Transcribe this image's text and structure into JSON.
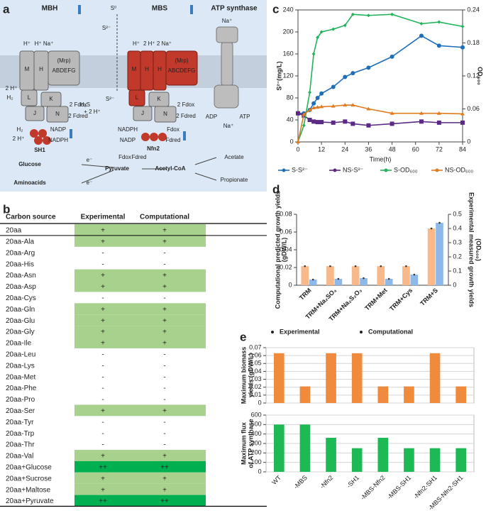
{
  "panel_labels": [
    "a",
    "b",
    "c",
    "d",
    "e"
  ],
  "diagram": {
    "labels": [
      "MBH",
      "MBS",
      "ATP synthase",
      "S⁰",
      "S²⁻",
      "H⁺",
      "H⁺ Na⁺",
      "(Mrp)",
      "ABDEFG",
      "M",
      "H",
      "L",
      "K",
      "J",
      "N",
      "2 H⁺",
      "H₂",
      "2 Fdox",
      "2 Fdred",
      "H⁺",
      "2 H⁺ 2 Na⁺",
      "(Mrp)",
      "ABCDEFG",
      "M",
      "H",
      "H",
      "L",
      "K",
      "J",
      "N",
      "S²⁻",
      "H₂S",
      "+ 2 H⁺",
      "2 Fdox",
      "2 Fdred",
      "Na⁺",
      "ADP",
      "ATP",
      "Na⁺",
      "H₂",
      "2 H⁺",
      "NADP",
      "NADPH",
      "SH1",
      "NADPH",
      "NADP",
      "Fdox",
      "Fdred",
      "Nfn2",
      "Glucose",
      "Aminoacids",
      "e⁻",
      "e⁻",
      "Pyruvate",
      "Fdox",
      "Fdred",
      "Acetyl-CoA",
      "Acetate",
      "Propionate"
    ]
  },
  "table": {
    "header": [
      "Carbon source",
      "Experimental",
      "Computational"
    ],
    "rows": [
      [
        "20aa",
        "+",
        "+"
      ],
      [
        "20aa-Ala",
        "+",
        "+"
      ],
      [
        "20aa-Arg",
        "-",
        "-"
      ],
      [
        "20aa-His",
        "-",
        "-"
      ],
      [
        "20aa-Asn",
        "+",
        "+"
      ],
      [
        "20aa-Asp",
        "+",
        "+"
      ],
      [
        "20aa-Cys",
        "-",
        "-"
      ],
      [
        "20aa-Gln",
        "+",
        "+"
      ],
      [
        "20aa-Glu",
        "+",
        "+"
      ],
      [
        "20aa-Gly",
        "+",
        "+"
      ],
      [
        "20aa-Ile",
        "+",
        "+"
      ],
      [
        "20aa-Leu",
        "-",
        "-"
      ],
      [
        "20aa-Lys",
        "-",
        "-"
      ],
      [
        "20aa-Met",
        "-",
        "-"
      ],
      [
        "20aa-Phe",
        "-",
        "-"
      ],
      [
        "20aa-Pro",
        "-",
        "-"
      ],
      [
        "20aa-Ser",
        "+",
        "+"
      ],
      [
        "20aa-Tyr",
        "-",
        "-"
      ],
      [
        "20aa-Trp",
        "-",
        "-"
      ],
      [
        "20aa-Thr",
        "-",
        "-"
      ],
      [
        "20aa-Val",
        "+",
        "+"
      ],
      [
        "20aa+Glucose",
        "++",
        "++"
      ],
      [
        "20aa+Sucrose",
        "+",
        "+"
      ],
      [
        "20aa+Maltose",
        "+",
        "+"
      ],
      [
        "20aa+Pyruvate",
        "++",
        "++"
      ]
    ]
  },
  "chart_data": [
    {
      "type": "line",
      "x": [
        0,
        3,
        6,
        8,
        10,
        12,
        18,
        24,
        28,
        36,
        48,
        63,
        72,
        84
      ],
      "xlim": [
        0,
        84
      ],
      "xticks": [
        0,
        12,
        24,
        36,
        48,
        60,
        72,
        84
      ],
      "xlabel": "Time(h)",
      "ylabel": "S²⁻(mg/L)",
      "y2label": "OD₆₀₀",
      "ylim": [
        0,
        240
      ],
      "yticks": [
        0,
        40,
        80,
        120,
        160,
        200,
        240
      ],
      "y2lim": [
        0,
        0.24
      ],
      "y2ticks": [
        0,
        0.06,
        0.12,
        0.18,
        0.24
      ],
      "series": [
        {
          "name": "S-S²⁻",
          "color": "#1f6fb8",
          "marker": "circle",
          "values": [
            52,
            52,
            58,
            70,
            80,
            88,
            100,
            118,
            125,
            135,
            155,
            193,
            175,
            172
          ]
        },
        {
          "name": "NS-S²⁻",
          "color": "#5b2a86",
          "marker": "square",
          "values": [
            52,
            48,
            40,
            37,
            36,
            36,
            35,
            37,
            33,
            30,
            33,
            37,
            35,
            35
          ]
        },
        {
          "name": "S-OD₆₀₀",
          "color": "#22b35a",
          "marker": "diamond",
          "axis": "y2",
          "values": [
            0,
            0.03,
            0.09,
            0.16,
            0.19,
            0.2,
            0.205,
            0.212,
            0.232,
            0.23,
            0.232,
            0.215,
            0.218,
            0.21
          ]
        },
        {
          "name": "NS-OD₆₀₀",
          "color": "#e07b1f",
          "marker": "triangle",
          "axis": "y2",
          "values": [
            0,
            0.05,
            0.058,
            0.062,
            0.063,
            0.064,
            0.065,
            0.067,
            0.067,
            0.06,
            0.052,
            0.052,
            0.052,
            0.051
          ]
        }
      ]
    },
    {
      "type": "bar",
      "categories": [
        "TRM",
        "TRM+Na₂SO₄",
        "TRM+Na₂S₂O₃",
        "TRM+Met",
        "TRM+Cys",
        "TRM+S"
      ],
      "ylabel": [
        "Computational predicted growth yields",
        "(gDW/L)"
      ],
      "y2label": [
        "Experimental measured growth yields",
        "(OD₆₀₀)"
      ],
      "ylim": [
        0,
        0.08
      ],
      "yticks": [
        0,
        0.02,
        0.04,
        0.06,
        0.08
      ],
      "y2lim": [
        0,
        0.5
      ],
      "y2ticks": [
        0,
        0.1,
        0.2,
        0.3,
        0.4,
        0.5
      ],
      "series": [
        {
          "name": "Experimental",
          "color": "#8db8ea",
          "axis": "y2",
          "values": [
            0.04,
            0.045,
            0.05,
            0.045,
            0.075,
            0.44
          ]
        },
        {
          "name": "Computational",
          "color": "#f7b98a",
          "values": [
            0.0215,
            0.0215,
            0.0215,
            0.0215,
            0.0215,
            0.064
          ]
        }
      ]
    },
    {
      "type": "panels",
      "categories": [
        "WT",
        "-MBS",
        "-Nfn2",
        "-SH1",
        "-MBS-Nfn2",
        "-MBS-SH1",
        "-Nfn2-SH1",
        "-MBS-Nfn2-SH1"
      ],
      "grid": true,
      "subplots": [
        {
          "ylabel": [
            "Maximum biomass",
            "yields (gDW/L)"
          ],
          "color": "#f08a3c",
          "ylim": [
            0,
            0.07
          ],
          "yticks": [
            0,
            0.01,
            0.02,
            0.03,
            0.04,
            0.05,
            0.06,
            0.07
          ],
          "values": [
            0.063,
            0.021,
            0.063,
            0.063,
            0.021,
            0.021,
            0.063,
            0.021
          ]
        },
        {
          "ylabel": [
            "Maximum flux",
            "of ATP synthase"
          ],
          "color": "#1db954",
          "ylim": [
            0,
            600
          ],
          "yticks": [
            0,
            100,
            200,
            300,
            400,
            500,
            600
          ],
          "values": [
            500,
            500,
            360,
            250,
            360,
            250,
            250,
            250
          ]
        }
      ]
    }
  ]
}
